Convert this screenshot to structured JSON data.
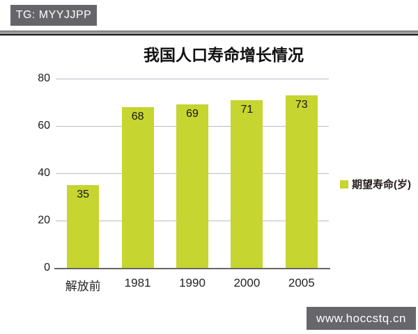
{
  "badges": {
    "telegram": "TG: MYYJJPP",
    "website": "www.hoccstq.cn"
  },
  "chart_data": {
    "type": "bar",
    "title": "我国人口寿命增长情况",
    "categories": [
      "解放前",
      "1981",
      "1990",
      "2000",
      "2005"
    ],
    "values": [
      35,
      68,
      69,
      71,
      73
    ],
    "series_name": "期望寿命(岁)",
    "legend": {
      "label": "期望寿命(岁)",
      "position": "right"
    },
    "xlabel": "",
    "ylabel": "",
    "ylim": [
      0,
      80
    ],
    "yticks": [
      0,
      20,
      40,
      60,
      80
    ],
    "grid": true
  },
  "colors": {
    "bar": "#c6d52f",
    "gridline": "#b6bcc6",
    "axis": "#666666",
    "badge_background": "#66666a",
    "badge_text": "#ffffff",
    "text": "#1a1a1a"
  }
}
